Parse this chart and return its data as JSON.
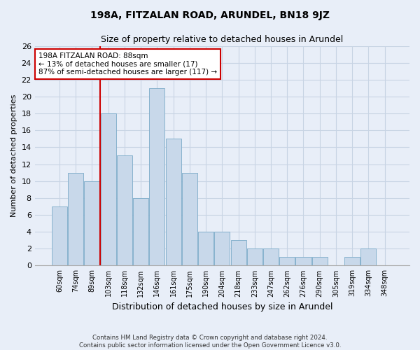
{
  "title": "198A, FITZALAN ROAD, ARUNDEL, BN18 9JZ",
  "subtitle": "Size of property relative to detached houses in Arundel",
  "xlabel": "Distribution of detached houses by size in Arundel",
  "ylabel": "Number of detached properties",
  "footer1": "Contains HM Land Registry data © Crown copyright and database right 2024.",
  "footer2": "Contains public sector information licensed under the Open Government Licence v3.0.",
  "categories": [
    "60sqm",
    "74sqm",
    "89sqm",
    "103sqm",
    "118sqm",
    "132sqm",
    "146sqm",
    "161sqm",
    "175sqm",
    "190sqm",
    "204sqm",
    "218sqm",
    "233sqm",
    "247sqm",
    "262sqm",
    "276sqm",
    "290sqm",
    "305sqm",
    "319sqm",
    "334sqm",
    "348sqm"
  ],
  "values": [
    7,
    11,
    10,
    18,
    13,
    8,
    21,
    15,
    11,
    4,
    4,
    3,
    2,
    2,
    1,
    1,
    1,
    0,
    1,
    2,
    0
  ],
  "bar_color": "#c8d8ea",
  "bar_edge_color": "#7aaac8",
  "grid_color": "#c8d4e4",
  "background_color": "#e8eef8",
  "annotation_text1": "198A FITZALAN ROAD: 88sqm",
  "annotation_text2": "← 13% of detached houses are smaller (17)",
  "annotation_text3": "87% of semi-detached houses are larger (117) →",
  "annotation_box_color": "#ffffff",
  "annotation_border_color": "#cc0000",
  "red_line_color": "#cc0000",
  "ylim": [
    0,
    26
  ],
  "yticks": [
    0,
    2,
    4,
    6,
    8,
    10,
    12,
    14,
    16,
    18,
    20,
    22,
    24,
    26
  ]
}
